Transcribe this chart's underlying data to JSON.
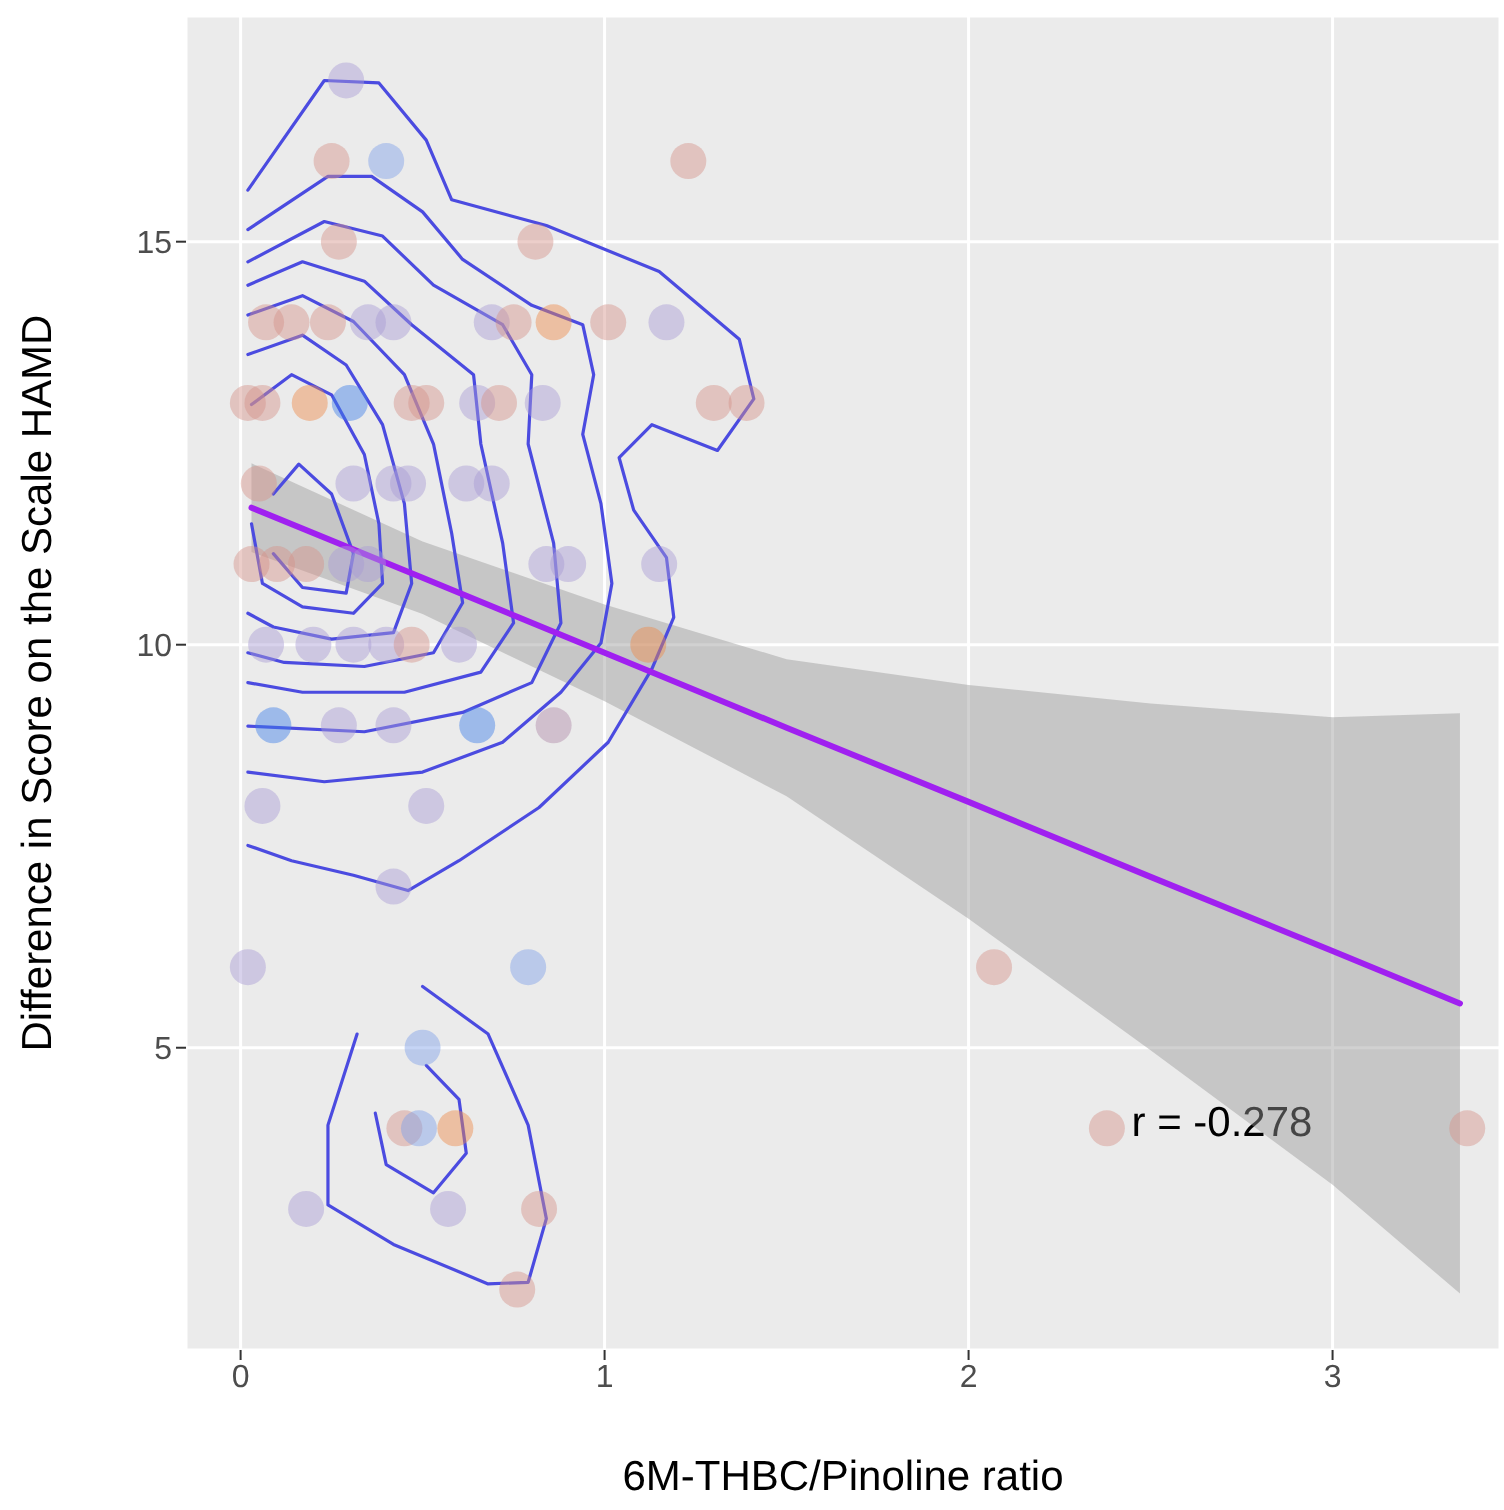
{
  "chart_data": {
    "type": "scatter",
    "xlabel": "6M-THBC/Pinoline ratio",
    "ylabel": "Difference in Score on the Scale HAMD",
    "xlim": [
      -0.15,
      3.46
    ],
    "ylim": [
      1.25,
      17.8
    ],
    "xticks": [
      0,
      1,
      2,
      3
    ],
    "yticks": [
      5,
      10,
      15
    ],
    "grid": true,
    "legend": false,
    "marker": "circle",
    "annotations": [
      "r = -0.278"
    ],
    "series": [
      {
        "type": "scatter",
        "x": [
          0.29,
          0.25,
          0.4,
          1.23,
          0.27,
          0.81,
          0.07,
          0.14,
          0.24,
          0.35,
          0.42,
          0.69,
          0.75,
          0.86,
          1.01,
          1.17,
          0.02,
          0.06,
          0.19,
          0.3,
          0.47,
          0.51,
          0.65,
          0.71,
          0.83,
          1.3,
          1.39,
          0.05,
          0.31,
          0.42,
          0.46,
          0.62,
          0.69,
          0.03,
          0.1,
          0.18,
          0.29,
          0.35,
          0.84,
          0.9,
          1.15,
          0.07,
          0.2,
          0.31,
          0.4,
          0.47,
          0.6,
          1.12,
          0.09,
          0.27,
          0.42,
          0.65,
          0.86,
          0.06,
          0.51,
          0.42,
          0.02,
          0.79,
          2.07,
          0.5,
          0.45,
          0.49,
          0.59,
          2.38,
          3.37,
          0.18,
          0.57,
          0.82,
          0.76
        ],
        "values": [
          17,
          16,
          16,
          16,
          15,
          15,
          14,
          14,
          14,
          14,
          14,
          14,
          14,
          14,
          14,
          14,
          13,
          13,
          13,
          13,
          13,
          13,
          13,
          13,
          13,
          13,
          13,
          12,
          12,
          12,
          12,
          12,
          12,
          11,
          11,
          11,
          11,
          11,
          11,
          11,
          11,
          10,
          10,
          10,
          10,
          10,
          10,
          10,
          9,
          9,
          9,
          9,
          9,
          8,
          8,
          7,
          6,
          6,
          6,
          5,
          4,
          4,
          4,
          4,
          4,
          3,
          3,
          3,
          2
        ],
        "colors": [
          "#a89bd4",
          "#d4938a",
          "#7fa0e8",
          "#d4938a",
          "#d4938a",
          "#d4938a",
          "#d4938a",
          "#d4938a",
          "#d4938a",
          "#a89bd4",
          "#a89bd4",
          "#a89bd4",
          "#d4938a",
          "#ee8a4a",
          "#d4938a",
          "#a89bd4",
          "#d4938a",
          "#d4938a",
          "#ee8a4a",
          "#3d7fe8",
          "#d4938a",
          "#d4938a",
          "#a89bd4",
          "#d4938a",
          "#a89bd4",
          "#d4938a",
          "#d4938a",
          "#d4938a",
          "#a89bd4",
          "#a89bd4",
          "#a89bd4",
          "#a89bd4",
          "#a89bd4",
          "#d4938a",
          "#d4938a",
          "#d4938a",
          "#a89bd4",
          "#a89bd4",
          "#a89bd4",
          "#a89bd4",
          "#a89bd4",
          "#a89bd4",
          "#a89bd4",
          "#a89bd4",
          "#a89bd4",
          "#d4938a",
          "#a89bd4",
          "#ee8a4a",
          "#3d7fe8",
          "#a89bd4",
          "#a89bd4",
          "#3d7fe8",
          "#b08aa8",
          "#a89bd4",
          "#a89bd4",
          "#a89bd4",
          "#a89bd4",
          "#7fa0e8",
          "#d4938a",
          "#7fa0e8",
          "#d4938a",
          "#7fa0e8",
          "#ee8a4a",
          "#d4938a",
          "#d4938a",
          "#a89bd4",
          "#a89bd4",
          "#d4938a",
          "#d4938a"
        ]
      },
      {
        "type": "line",
        "marker": "none",
        "color": "#4b4be0",
        "x": [
          0.02,
          0.23,
          0.38,
          0.51,
          0.58,
          0.84,
          1.15,
          1.37,
          1.41,
          1.31,
          1.13,
          1.04,
          1.08,
          1.17,
          1.19,
          1.13,
          1.01,
          0.82,
          0.6,
          0.46,
          0.31,
          0.14,
          0.02
        ],
        "values": [
          15.64,
          17.0,
          16.97,
          16.26,
          15.52,
          15.2,
          14.63,
          13.79,
          13.05,
          12.41,
          12.73,
          12.32,
          11.67,
          11.08,
          10.34,
          9.7,
          8.79,
          7.98,
          7.32,
          6.95,
          7.14,
          7.32,
          7.51
        ]
      },
      {
        "type": "line",
        "marker": "none",
        "color": "#4b4be0",
        "x": [
          0.02,
          0.24,
          0.36,
          0.5,
          0.61,
          0.8,
          0.94,
          0.97,
          0.94,
          0.99,
          1.02,
          0.99,
          0.88,
          0.72,
          0.5,
          0.23,
          0.02
        ],
        "values": [
          15.15,
          15.81,
          15.81,
          15.37,
          14.78,
          14.21,
          13.97,
          13.35,
          12.61,
          11.75,
          10.76,
          10.02,
          9.41,
          8.79,
          8.42,
          8.3,
          8.42
        ]
      },
      {
        "type": "line",
        "marker": "none",
        "color": "#4b4be0",
        "x": [
          0.02,
          0.23,
          0.39,
          0.53,
          0.72,
          0.8,
          0.79,
          0.86,
          0.88,
          0.8,
          0.61,
          0.34,
          0.02
        ],
        "values": [
          14.75,
          15.25,
          15.07,
          14.46,
          13.97,
          13.35,
          12.49,
          11.26,
          10.27,
          9.53,
          9.16,
          8.92,
          8.99
        ]
      },
      {
        "type": "line",
        "marker": "none",
        "color": "#4b4be0",
        "x": [
          0.02,
          0.17,
          0.34,
          0.47,
          0.64,
          0.66,
          0.72,
          0.75,
          0.66,
          0.45,
          0.17,
          0.02
        ],
        "values": [
          14.46,
          14.75,
          14.51,
          13.97,
          13.35,
          12.49,
          11.26,
          10.27,
          9.66,
          9.41,
          9.41,
          9.53
        ]
      },
      {
        "type": "line",
        "marker": "none",
        "color": "#4b4be0",
        "x": [
          0.02,
          0.17,
          0.31,
          0.45,
          0.53,
          0.58,
          0.61,
          0.53,
          0.34,
          0.12,
          0.02
        ],
        "values": [
          14.09,
          14.33,
          14.01,
          13.35,
          12.49,
          11.38,
          10.52,
          9.9,
          9.73,
          9.78,
          9.9
        ]
      },
      {
        "type": "line",
        "marker": "none",
        "color": "#4b4be0",
        "x": [
          0.02,
          0.17,
          0.29,
          0.39,
          0.45,
          0.47,
          0.42,
          0.25,
          0.09,
          0.02
        ],
        "values": [
          13.6,
          13.84,
          13.47,
          12.73,
          11.75,
          10.76,
          10.15,
          10.07,
          10.22,
          10.39
        ]
      },
      {
        "type": "line",
        "marker": "none",
        "color": "#4b4be0",
        "x": [
          0.03,
          0.14,
          0.25,
          0.34,
          0.38,
          0.39,
          0.31,
          0.17,
          0.06,
          0.03
        ],
        "values": [
          12.98,
          13.35,
          13.1,
          12.36,
          11.5,
          10.76,
          10.39,
          10.47,
          10.76,
          11.5
        ]
      },
      {
        "type": "line",
        "marker": "none",
        "color": "#4b4be0",
        "x": [
          0.09,
          0.16,
          0.25,
          0.31,
          0.29,
          0.17,
          0.09
        ],
        "values": [
          11.87,
          12.24,
          11.87,
          11.13,
          10.64,
          10.71,
          11.13
        ]
      },
      {
        "type": "line",
        "marker": "none",
        "color": "#4b4be0",
        "x": [
          0.5,
          0.68,
          0.79,
          0.84,
          0.79,
          0.68,
          0.42,
          0.24,
          0.24,
          0.32
        ],
        "values": [
          5.76,
          5.17,
          4.04,
          2.88,
          2.09,
          2.07,
          2.56,
          3.05,
          4.04,
          5.17
        ]
      },
      {
        "type": "line",
        "marker": "none",
        "color": "#4b4be0",
        "x": [
          0.51,
          0.6,
          0.62,
          0.53,
          0.4,
          0.37
        ],
        "values": [
          4.78,
          4.36,
          3.69,
          3.2,
          3.55,
          4.19
        ]
      },
      {
        "type": "line",
        "marker": "none",
        "color": "#a020f0",
        "x": [
          0.03,
          0.5,
          1.0,
          1.5,
          2.0,
          2.5,
          3.0,
          3.35
        ],
        "values": [
          11.7,
          10.83,
          9.9,
          8.97,
          8.05,
          7.12,
          6.2,
          5.55
        ],
        "lower": [
          11.15,
          10.38,
          9.3,
          8.12,
          6.6,
          4.97,
          3.3,
          1.95
        ],
        "upper": [
          12.25,
          11.28,
          10.5,
          9.82,
          9.5,
          9.27,
          9.1,
          9.15
        ]
      }
    ]
  }
}
